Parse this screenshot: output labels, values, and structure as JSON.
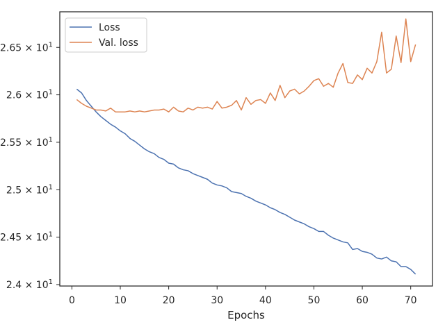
{
  "chart_data": {
    "type": "line",
    "xlabel": "Epochs",
    "ylabel": "",
    "xlim": [
      -2.5,
      74.5
    ],
    "ylim": [
      23.985,
      26.875
    ],
    "xticks": [
      0,
      10,
      20,
      30,
      40,
      50,
      60,
      70
    ],
    "xtick_labels": [
      "0",
      "10",
      "20",
      "30",
      "40",
      "50",
      "60",
      "70"
    ],
    "yticks": [
      24.0,
      24.5,
      25.0,
      25.5,
      26.0,
      26.5
    ],
    "ytick_labels": [
      {
        "mantissa": "2.4",
        "exp": "1"
      },
      {
        "mantissa": "2.45",
        "exp": "1"
      },
      {
        "mantissa": "2.5",
        "exp": "1"
      },
      {
        "mantissa": "2.55",
        "exp": "1"
      },
      {
        "mantissa": "2.6",
        "exp": "1"
      },
      {
        "mantissa": "2.65",
        "exp": "1"
      }
    ],
    "ytick_times": "×",
    "ytick_base": "10",
    "grid": false,
    "legend_position": "top-left",
    "x": [
      1,
      2,
      3,
      4,
      5,
      6,
      7,
      8,
      9,
      10,
      11,
      12,
      13,
      14,
      15,
      16,
      17,
      18,
      19,
      20,
      21,
      22,
      23,
      24,
      25,
      26,
      27,
      28,
      29,
      30,
      31,
      32,
      33,
      34,
      35,
      36,
      37,
      38,
      39,
      40,
      41,
      42,
      43,
      44,
      45,
      46,
      47,
      48,
      49,
      50,
      51,
      52,
      53,
      54,
      55,
      56,
      57,
      58,
      59,
      60,
      61,
      62,
      63,
      64,
      65,
      66,
      67,
      68,
      69,
      70,
      71
    ],
    "series": [
      {
        "name": "Loss",
        "color": "#4c72b0",
        "values": [
          26.06,
          26.02,
          25.94,
          25.88,
          25.82,
          25.77,
          25.73,
          25.69,
          25.66,
          25.62,
          25.59,
          25.54,
          25.51,
          25.47,
          25.43,
          25.4,
          25.38,
          25.34,
          25.32,
          25.28,
          25.27,
          25.23,
          25.21,
          25.2,
          25.17,
          25.15,
          25.13,
          25.11,
          25.07,
          25.05,
          25.04,
          25.02,
          24.98,
          24.97,
          24.96,
          24.93,
          24.91,
          24.88,
          24.86,
          24.84,
          24.81,
          24.79,
          24.76,
          24.74,
          24.71,
          24.68,
          24.66,
          24.64,
          24.61,
          24.59,
          24.56,
          24.56,
          24.52,
          24.49,
          24.47,
          24.45,
          24.44,
          24.37,
          24.38,
          24.35,
          24.34,
          24.32,
          24.28,
          24.27,
          24.29,
          24.25,
          24.24,
          24.19,
          24.19,
          24.16,
          24.11
        ]
      },
      {
        "name": "Val. loss",
        "color": "#dd8452",
        "values": [
          25.95,
          25.91,
          25.88,
          25.86,
          25.84,
          25.84,
          25.83,
          25.86,
          25.82,
          25.82,
          25.82,
          25.83,
          25.82,
          25.83,
          25.82,
          25.83,
          25.84,
          25.84,
          25.85,
          25.82,
          25.87,
          25.83,
          25.82,
          25.86,
          25.84,
          25.87,
          25.86,
          25.87,
          25.85,
          25.93,
          25.86,
          25.87,
          25.89,
          25.94,
          25.84,
          25.97,
          25.9,
          25.94,
          25.95,
          25.91,
          26.02,
          25.94,
          26.1,
          25.97,
          26.04,
          26.06,
          26.01,
          26.04,
          26.09,
          26.15,
          26.17,
          26.09,
          26.12,
          26.08,
          26.23,
          26.33,
          26.13,
          26.12,
          26.21,
          26.16,
          26.28,
          26.23,
          26.35,
          26.66,
          26.23,
          26.27,
          26.62,
          26.34,
          26.8,
          26.35,
          26.53
        ]
      }
    ]
  }
}
